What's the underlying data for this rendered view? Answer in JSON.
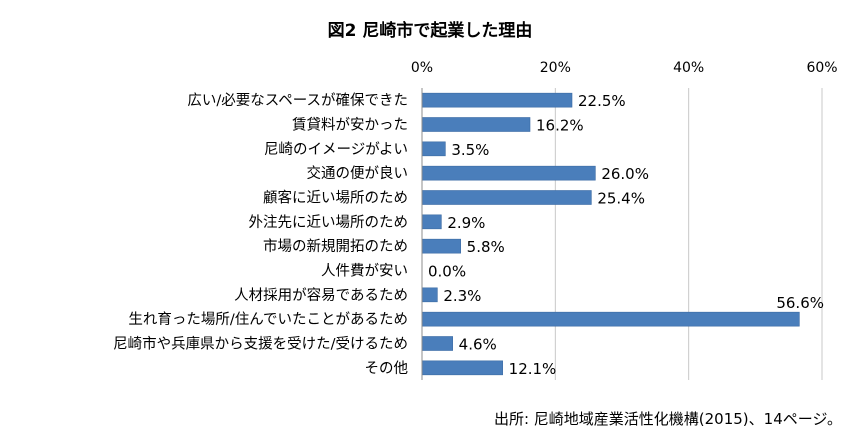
{
  "chart_data": {
    "type": "bar",
    "orientation": "horizontal",
    "title": "図2 尼崎市で起業した理由",
    "categories": [
      "広い/必要なスペースが確保できた",
      "賃貸料が安かった",
      "尼崎のイメージがよい",
      "交通の便が良い",
      "顧客に近い場所のため",
      "外注先に近い場所のため",
      "市場の新規開拓のため",
      "人件費が安い",
      "人材採用が容易であるため",
      "生れ育った場所/住んでいたことがあるため",
      "尼崎市や兵庫県から支援を受けた/受けるため",
      "その他"
    ],
    "values": [
      22.5,
      16.2,
      3.5,
      26.0,
      25.4,
      2.9,
      5.8,
      0.0,
      2.3,
      56.6,
      4.6,
      12.1
    ],
    "value_labels": [
      "22.5%",
      "16.2%",
      "3.5%",
      "26.0%",
      "25.4%",
      "2.9%",
      "5.8%",
      "0.0%",
      "2.3%",
      "56.6%",
      "4.6%",
      "12.1%"
    ],
    "xticks": [
      0,
      20,
      40,
      60
    ],
    "xtick_labels": [
      "0%",
      "20%",
      "40%",
      "60%"
    ],
    "xlim": [
      0,
      60
    ],
    "xaxis_position": "top",
    "grid": true,
    "bar_color": "#4a7ebb",
    "source": "出所: 尼崎地域産業活性化機構(2015)、14ページ。"
  }
}
